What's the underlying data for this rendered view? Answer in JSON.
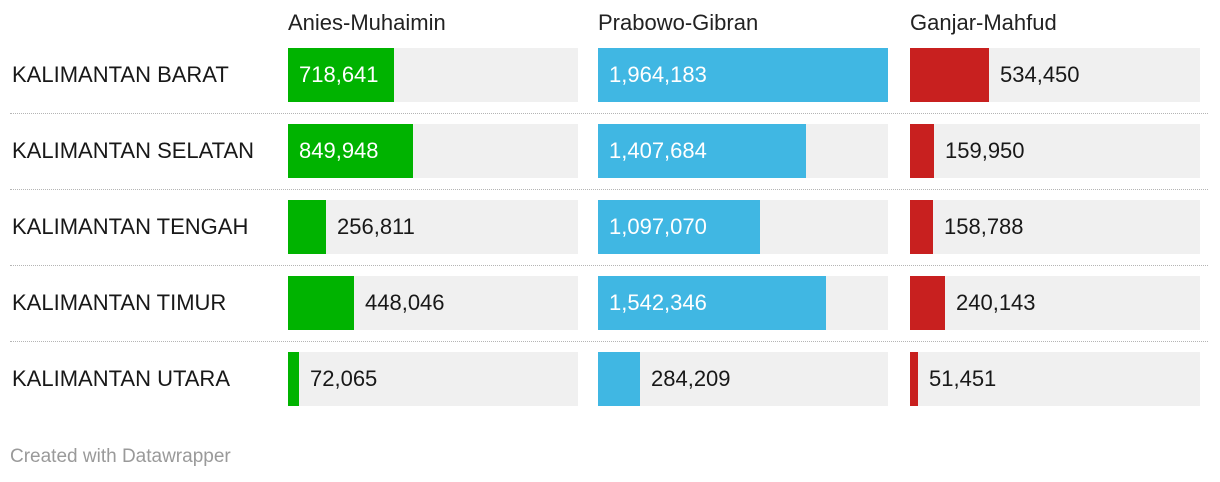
{
  "chart_data": {
    "type": "bar",
    "categories": [
      "KALIMANTAN BARAT",
      "KALIMANTAN SELATAN",
      "KALIMANTAN TENGAH",
      "KALIMANTAN TIMUR",
      "KALIMANTAN UTARA"
    ],
    "series": [
      {
        "name": "Anies-Muhaimin",
        "color": "#00b300",
        "values": [
          718641,
          849948,
          256811,
          448046,
          72065
        ],
        "labels": [
          "718,641",
          "849,948",
          "256,811",
          "448,046",
          "72,065"
        ]
      },
      {
        "name": "Prabowo-Gibran",
        "color": "#40b7e3",
        "values": [
          1964183,
          1407684,
          1097070,
          1542346,
          284209
        ],
        "labels": [
          "1,964,183",
          "1,407,684",
          "1,097,070",
          "1,542,346",
          "284,209"
        ]
      },
      {
        "name": "Ganjar-Mahfud",
        "color": "#c8201f",
        "values": [
          534450,
          159950,
          158788,
          240143,
          51451
        ],
        "labels": [
          "534,450",
          "159,950",
          "158,788",
          "240,143",
          "51,451"
        ]
      }
    ],
    "layout": "small-multiple horizontal bars",
    "grid": false,
    "legend": "column headers"
  },
  "footer": {
    "credit": "Created with Datawrapper"
  }
}
